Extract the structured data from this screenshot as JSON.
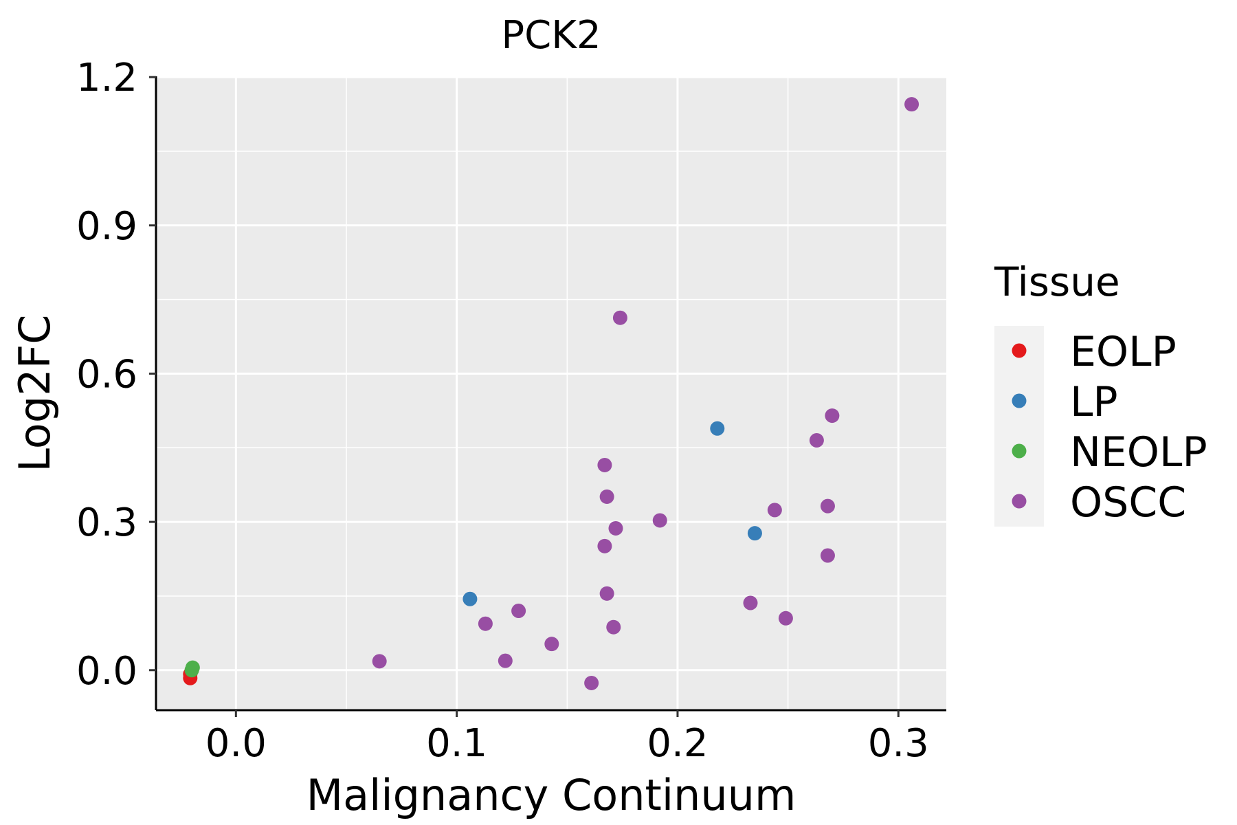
{
  "chart_data": {
    "type": "scatter",
    "title": "PCK2",
    "xlabel": "Malignancy Continuum",
    "ylabel": "Log2FC",
    "xlim": [
      -0.0362,
      0.3217
    ],
    "ylim": [
      -0.081,
      1.2016
    ],
    "xticks": [
      0.0,
      0.1,
      0.2,
      0.3
    ],
    "xtick_labels": [
      "0.0",
      "0.1",
      "0.2",
      "0.3"
    ],
    "xminor": [
      0.05,
      0.15,
      0.25
    ],
    "yticks": [
      0.0,
      0.3,
      0.6,
      0.9,
      1.2
    ],
    "ytick_labels": [
      "0.0",
      "0.3",
      "0.6",
      "0.9",
      "1.2"
    ],
    "yminor": [
      0.15,
      0.45,
      0.75,
      1.05
    ],
    "grid": true,
    "legend": {
      "title": "Tissue",
      "placement": "right"
    },
    "series": [
      {
        "name": "EOLP",
        "color": "#E41A1C",
        "points": [
          [
            -0.0207,
            -0.016
          ],
          [
            -0.0207,
            -0.008
          ]
        ]
      },
      {
        "name": "LP",
        "color": "#377EB8",
        "points": [
          [
            0.106,
            0.144
          ],
          [
            0.218,
            0.489
          ],
          [
            0.235,
            0.277
          ]
        ]
      },
      {
        "name": "NEOLP",
        "color": "#4DAF4A",
        "points": [
          [
            -0.0196,
            0.005
          ],
          [
            -0.02,
            0.0
          ]
        ]
      },
      {
        "name": "OSCC",
        "color": "#984EA3",
        "points": [
          [
            0.306,
            1.145
          ],
          [
            0.174,
            0.713
          ],
          [
            0.27,
            0.515
          ],
          [
            0.263,
            0.465
          ],
          [
            0.167,
            0.415
          ],
          [
            0.168,
            0.351
          ],
          [
            0.192,
            0.303
          ],
          [
            0.244,
            0.324
          ],
          [
            0.268,
            0.332
          ],
          [
            0.172,
            0.287
          ],
          [
            0.167,
            0.251
          ],
          [
            0.268,
            0.232
          ],
          [
            0.168,
            0.155
          ],
          [
            0.233,
            0.136
          ],
          [
            0.249,
            0.105
          ],
          [
            0.128,
            0.12
          ],
          [
            0.113,
            0.094
          ],
          [
            0.171,
            0.087
          ],
          [
            0.143,
            0.053
          ],
          [
            0.122,
            0.019
          ],
          [
            0.065,
            0.018
          ],
          [
            0.161,
            -0.026
          ]
        ]
      }
    ]
  }
}
